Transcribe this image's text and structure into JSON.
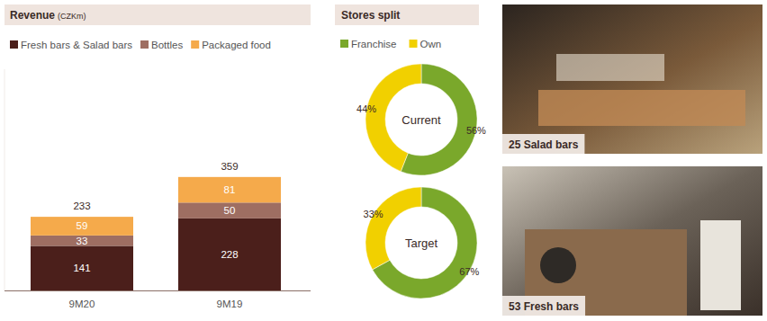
{
  "chart_data": [
    {
      "type": "bar",
      "title": "Revenue",
      "subtitle": "(CZKm)",
      "categories": [
        "9M20",
        "9M19"
      ],
      "series": [
        {
          "name": "Fresh bars & Salad bars",
          "color": "#4b1f1b",
          "values": [
            141,
            228
          ]
        },
        {
          "name": "Bottles",
          "color": "#9e6e62",
          "values": [
            33,
            50
          ]
        },
        {
          "name": "Packaged food",
          "color": "#f5aa4b",
          "values": [
            59,
            81
          ]
        }
      ],
      "totals": [
        233,
        359
      ],
      "stacked": true,
      "data_labels": true,
      "legend": "top-left",
      "ylim": [
        0,
        700
      ],
      "tick_labels": "x",
      "grid": false
    },
    {
      "type": "pie",
      "title": "Current",
      "categories": [
        "Franchise",
        "Own"
      ],
      "values": [
        56,
        44
      ],
      "value_labels": [
        "56%",
        "44%"
      ],
      "colors": [
        "#7aa82b",
        "#f1d000"
      ],
      "data_labels": true,
      "legend": "top-left"
    },
    {
      "type": "pie",
      "title": "Target",
      "categories": [
        "Franchise",
        "Own"
      ],
      "values": [
        67,
        33
      ],
      "value_labels": [
        "67%",
        "33%"
      ],
      "colors": [
        "#7aa82b",
        "#f1d000"
      ],
      "data_labels": true
    }
  ],
  "header": {
    "stores": "Stores split"
  },
  "photos": [
    {
      "label": "25 Salad bars"
    },
    {
      "label": "53 Fresh bars"
    }
  ]
}
